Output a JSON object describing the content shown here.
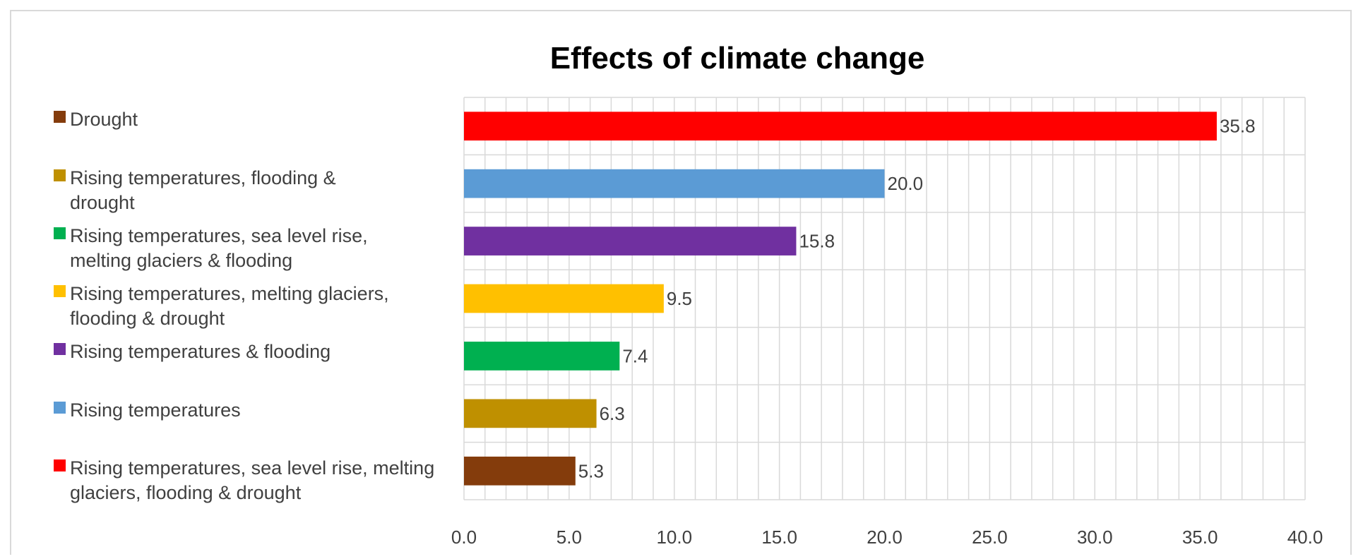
{
  "chart_data": {
    "type": "bar",
    "orientation": "horizontal",
    "title": "Effects of climate change",
    "xlabel": "",
    "ylabel": "",
    "xlim": [
      0,
      40
    ],
    "x_ticks": [
      "0.0",
      "5.0",
      "10.0",
      "15.0",
      "20.0",
      "25.0",
      "30.0",
      "35.0",
      "40.0"
    ],
    "grid": true,
    "legend_position": "left",
    "bars_top_to_bottom": [
      {
        "value": 35.8,
        "label": "35.8",
        "color": "#ff0000"
      },
      {
        "value": 20.0,
        "label": "20.0",
        "color": "#5b9bd5"
      },
      {
        "value": 15.8,
        "label": "15.8",
        "color": "#7030a0"
      },
      {
        "value": 9.5,
        "label": "9.5",
        "color": "#ffc000"
      },
      {
        "value": 7.4,
        "label": "7.4",
        "color": "#00b050"
      },
      {
        "value": 6.3,
        "label": "6.3",
        "color": "#bf9000"
      },
      {
        "value": 5.3,
        "label": "5.3",
        "color": "#843c0c"
      }
    ],
    "legend": [
      {
        "name": "Drought",
        "color": "#843c0c"
      },
      {
        "name": "Rising temperatures, flooding & drought",
        "color": "#bf9000"
      },
      {
        "name": "Rising temperatures, sea level rise, melting glaciers & flooding",
        "color": "#00b050"
      },
      {
        "name": "Rising temperatures, melting glaciers, flooding & drought",
        "color": "#ffc000"
      },
      {
        "name": "Rising temperatures & flooding",
        "color": "#7030a0"
      },
      {
        "name": "Rising temperatures",
        "color": "#5b9bd5"
      },
      {
        "name": "Rising temperatures, sea level rise, melting glaciers, flooding & drought",
        "color": "#ff0000"
      }
    ]
  }
}
